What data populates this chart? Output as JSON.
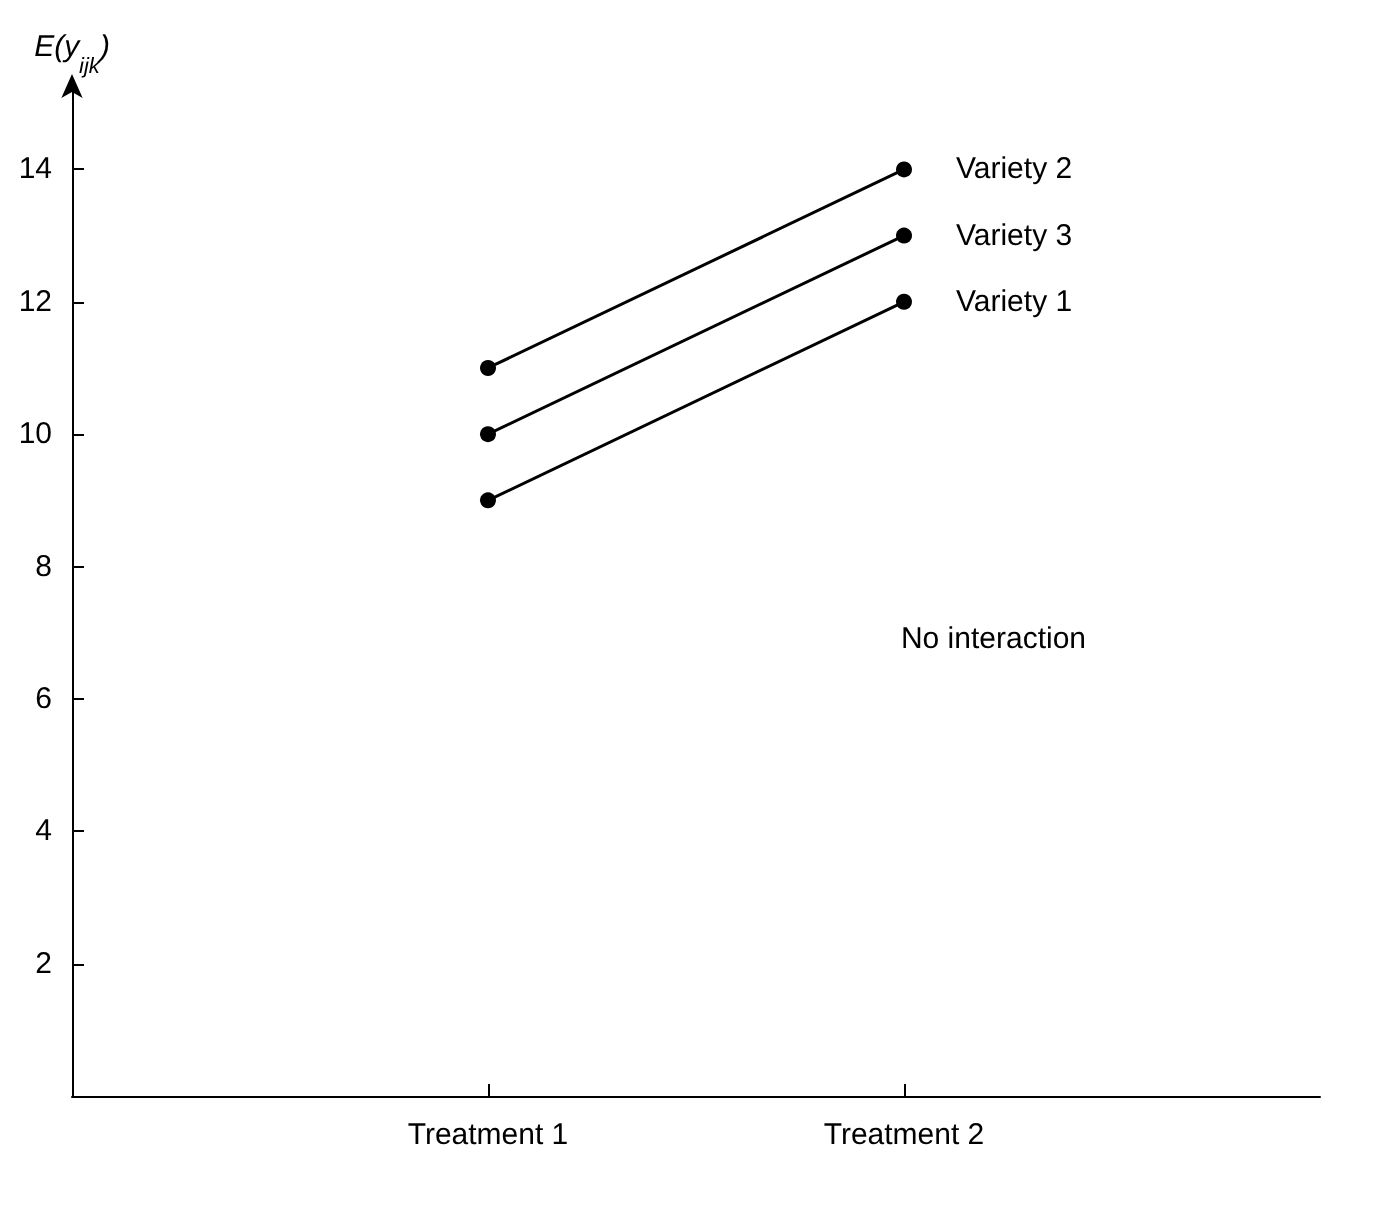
{
  "chart_data": {
    "type": "line",
    "ylabel": "E(y$_{ijk}$)",
    "categories": [
      null,
      "Treatment 1",
      "Treatment 2",
      null
    ],
    "series": [
      {
        "name": "Variety 1",
        "color": "#000000",
        "values": [
          null,
          9,
          12,
          null
        ]
      },
      {
        "name": "Variety 2",
        "color": "#000000",
        "values": [
          null,
          11,
          14,
          null
        ]
      },
      {
        "name": "Variety 3",
        "color": "#000000",
        "values": [
          null,
          10,
          13,
          null
        ]
      }
    ],
    "ylim": [
      0,
      15.2
    ],
    "yticks": [
      2,
      4,
      6,
      8,
      10,
      12,
      14
    ],
    "annotations": [
      "No interaction"
    ],
    "grid": false,
    "legend": false,
    "marker": "circle",
    "line_style": "solid"
  }
}
